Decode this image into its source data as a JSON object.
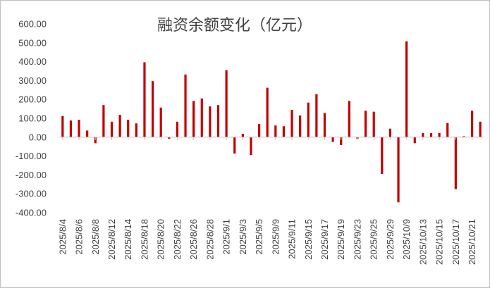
{
  "chart_data": {
    "type": "bar",
    "title": "融资余额变化（亿元）",
    "xlabel": "",
    "ylabel": "",
    "ylim": [
      -400,
      600
    ],
    "yticks": [
      600,
      500,
      400,
      300,
      200,
      100,
      0,
      -100,
      -200,
      -300,
      -400
    ],
    "ytick_labels": [
      "600.00",
      "500.00",
      "400.00",
      "300.00",
      "200.00",
      "100.00",
      "0.00",
      "-100.00",
      "-200.00",
      "-300.00",
      "-400.00"
    ],
    "grid": false,
    "legend": "none",
    "bar_color": "#c00000",
    "categories": [
      "2025/8/4",
      "2025/8/5",
      "2025/8/6",
      "2025/8/7",
      "2025/8/8",
      "2025/8/11",
      "2025/8/12",
      "2025/8/13",
      "2025/8/14",
      "2025/8/15",
      "2025/8/18",
      "2025/8/19",
      "2025/8/20",
      "2025/8/21",
      "2025/8/22",
      "2025/8/25",
      "2025/8/26",
      "2025/8/27",
      "2025/8/28",
      "2025/8/29",
      "2025/9/1",
      "2025/9/2",
      "2025/9/3",
      "2025/9/4",
      "2025/9/5",
      "2025/9/8",
      "2025/9/9",
      "2025/9/10",
      "2025/9/11",
      "2025/9/12",
      "2025/9/15",
      "2025/9/16",
      "2025/9/17",
      "2025/9/18",
      "2025/9/19",
      "2025/9/22",
      "2025/9/23",
      "2025/9/24",
      "2025/9/25",
      "2025/9/26",
      "2025/9/29",
      "2025/9/30",
      "2025/10/9",
      "2025/10/10",
      "2025/10/13",
      "2025/10/14",
      "2025/10/15",
      "2025/10/16",
      "2025/10/17",
      "2025/10/20",
      "2025/10/21",
      "2025/10/22"
    ],
    "values": [
      112,
      88,
      92,
      35,
      -32,
      170,
      82,
      118,
      92,
      73,
      397,
      297,
      157,
      -8,
      82,
      332,
      192,
      205,
      163,
      170,
      355,
      -87,
      18,
      -95,
      70,
      262,
      62,
      58,
      145,
      115,
      183,
      228,
      128,
      -25,
      -42,
      192,
      -8,
      140,
      135,
      -195,
      45,
      -345,
      508,
      -32,
      22,
      22,
      22,
      75,
      -275,
      5,
      140,
      82
    ],
    "visible_tick_labels": [
      "2025/8/4",
      "2025/8/6",
      "2025/8/8",
      "2025/8/12",
      "2025/8/14",
      "2025/8/18",
      "2025/8/20",
      "2025/8/22",
      "2025/8/26",
      "2025/8/28",
      "2025/9/1",
      "2025/9/3",
      "2025/9/5",
      "2025/9/9",
      "2025/9/11",
      "2025/9/15",
      "2025/9/17",
      "2025/9/19",
      "2025/9/23",
      "2025/9/25",
      "2025/9/29",
      "2025/10/9",
      "2025/10/13",
      "2025/10/15",
      "2025/10/17",
      "2025/10/21"
    ]
  }
}
